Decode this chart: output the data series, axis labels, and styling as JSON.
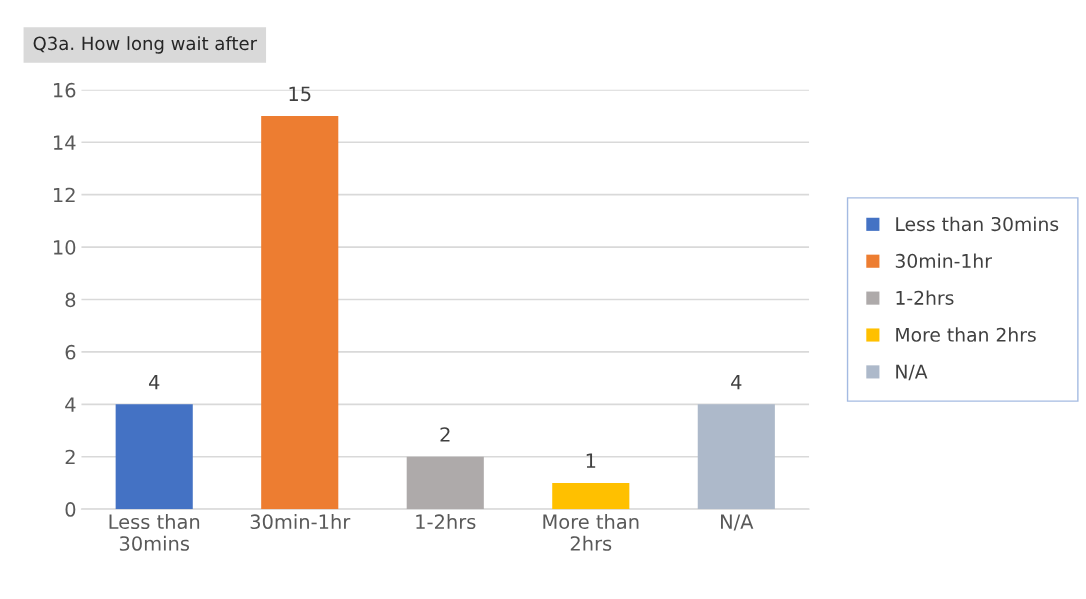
{
  "chart_data": {
    "type": "bar",
    "title": "Q3a. How long wait after",
    "categories": [
      "Less than\n30mins",
      "30min-1hr",
      "1-2hrs",
      "More than\n2hrs",
      "N/A"
    ],
    "series": [
      {
        "name": "Less than 30mins",
        "color": "#4472c4",
        "values": [
          4,
          null,
          null,
          null,
          null
        ]
      },
      {
        "name": "30min-1hr",
        "color": "#ed7d31",
        "values": [
          null,
          15,
          null,
          null,
          null
        ]
      },
      {
        "name": "1-2hrs",
        "color": "#aeaaaa",
        "values": [
          null,
          null,
          2,
          null,
          null
        ]
      },
      {
        "name": "More than 2hrs",
        "color": "#ffc000",
        "values": [
          null,
          null,
          null,
          1,
          null
        ]
      },
      {
        "name": "N/A",
        "color": "#adb9ca",
        "values": [
          null,
          null,
          null,
          null,
          4
        ]
      }
    ],
    "ylim": [
      0,
      16
    ],
    "yticks": [
      0,
      2,
      4,
      6,
      8,
      10,
      12,
      14,
      16
    ],
    "grid": "y",
    "legend": "right",
    "data_labels": true
  }
}
